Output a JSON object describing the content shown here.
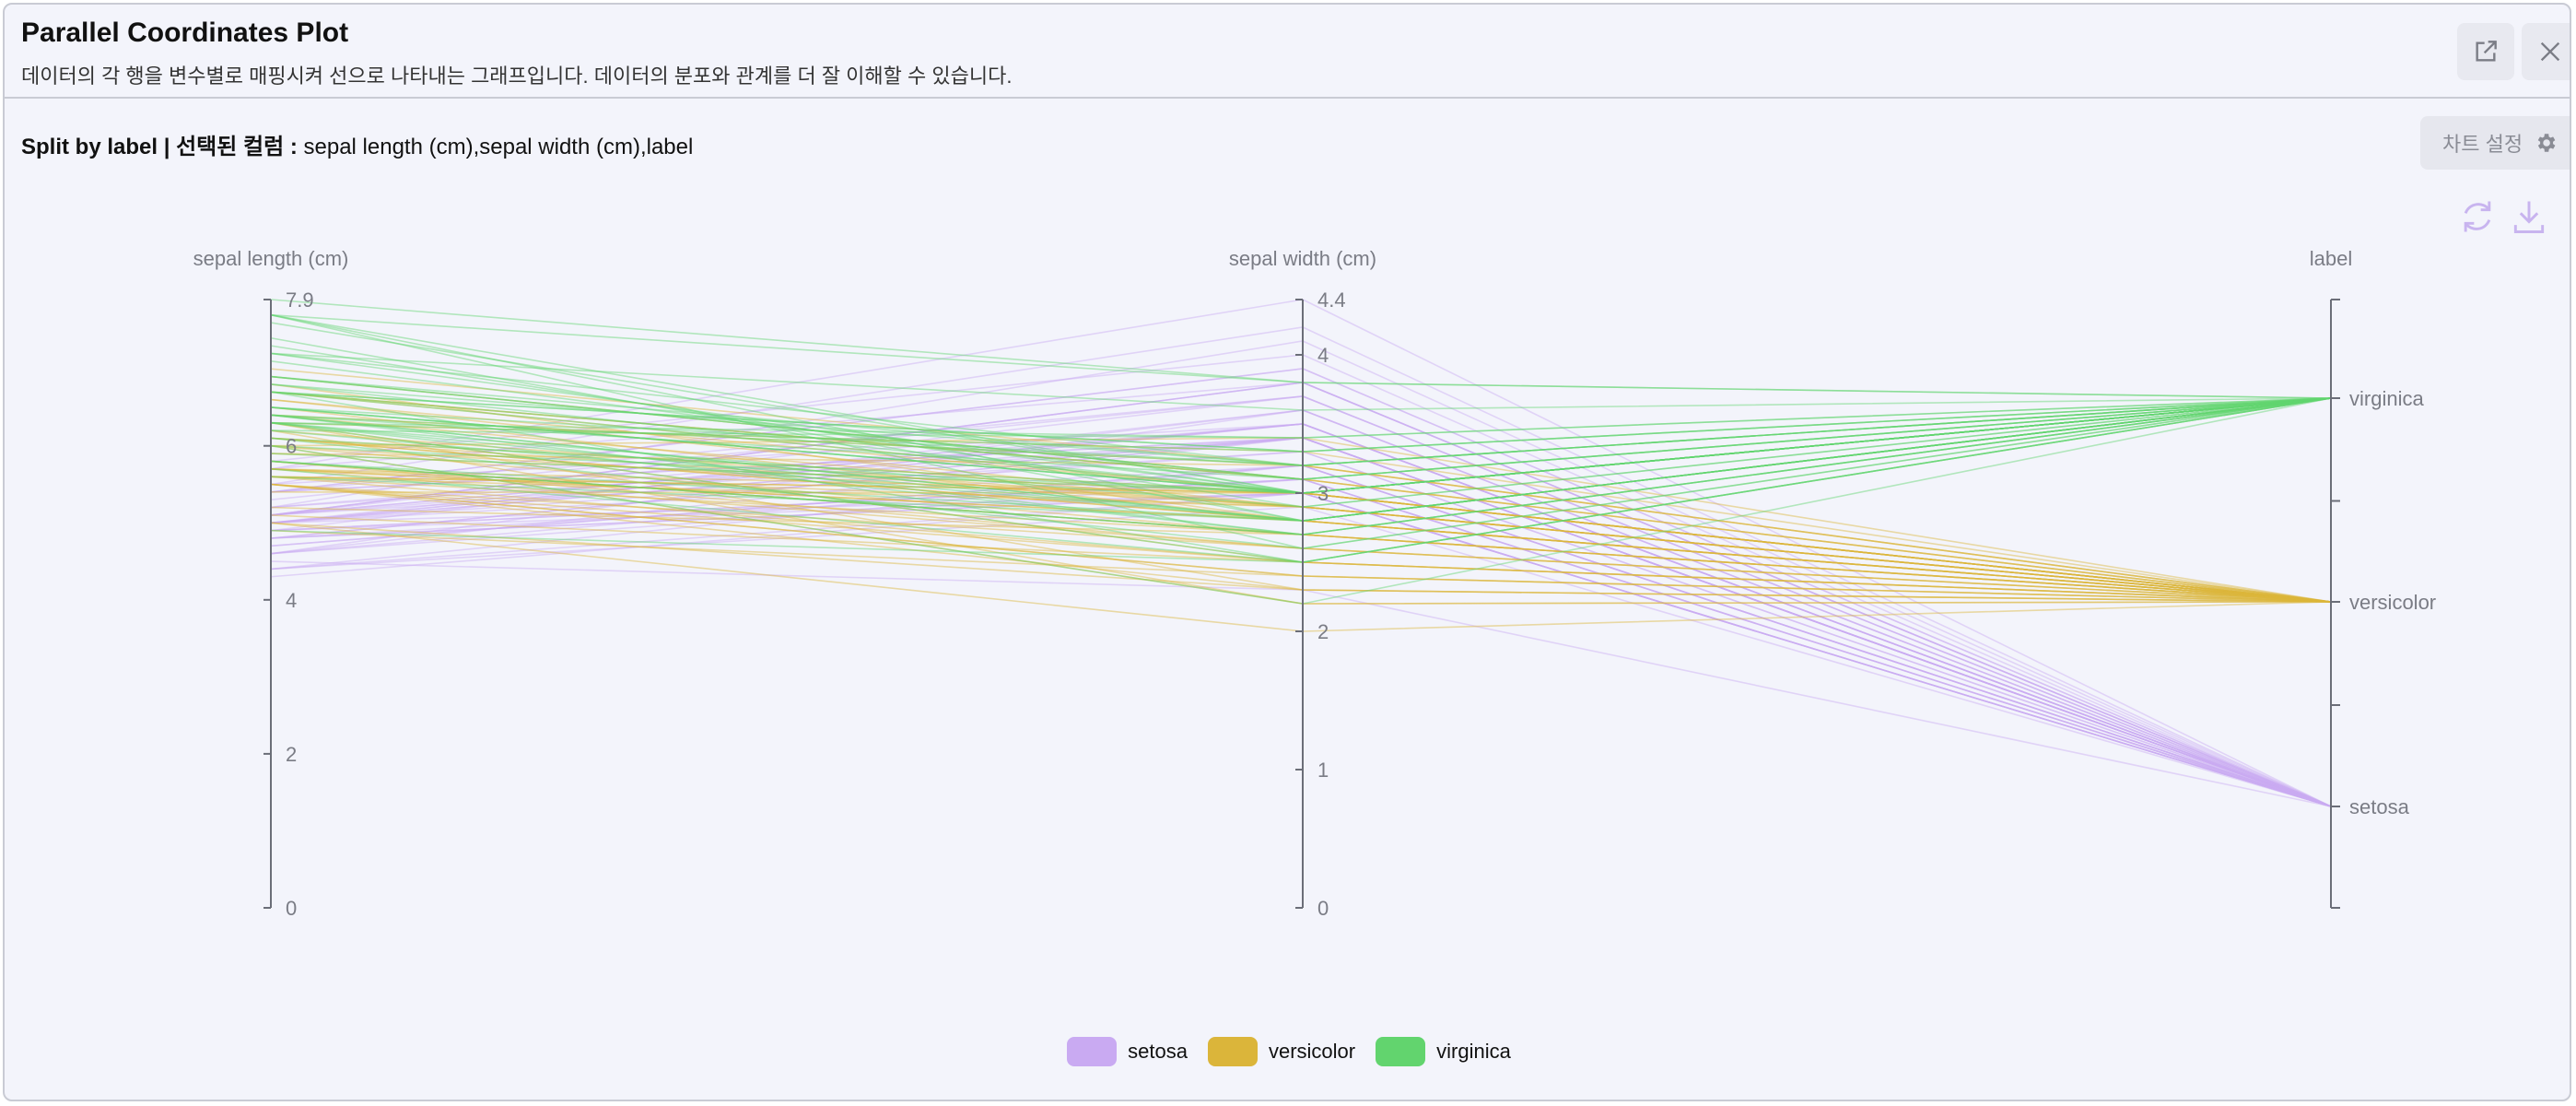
{
  "header": {
    "title": "Parallel Coordinates Plot",
    "subtitle": "데이터의 각 행을 변수별로 매핑시켜 선으로 나타내는 그래프입니다. 데이터의 분포와 관계를 더 잘 이해할 수 있습니다.",
    "open_icon": "external-link-icon",
    "close_icon": "close-icon"
  },
  "toolbar": {
    "split_label": "Split by label",
    "separator": " | ",
    "columns_label": "선택된 컬럼 : ",
    "columns_value": "sepal length (cm),sepal width (cm),label",
    "settings_label": "차트 설정",
    "settings_icon": "gear-icon",
    "refresh_icon": "refresh-icon",
    "download_icon": "download-icon"
  },
  "colors": {
    "setosa": "#c9aaf2",
    "versicolor": "#dbb53a",
    "virginica": "#62d46e",
    "axis": "#6b6e78",
    "label": "#7a7c85"
  },
  "chart_data": {
    "type": "parallel-coordinates",
    "axes": [
      {
        "name": "sepal length (cm)",
        "min": 0,
        "max": 7.9,
        "ticks": [
          0,
          2,
          4,
          6
        ],
        "max_label": "7.9"
      },
      {
        "name": "sepal width (cm)",
        "min": 0,
        "max": 4.4,
        "ticks": [
          0,
          1,
          2,
          3,
          4
        ],
        "max_label": "4.4"
      },
      {
        "name": "label",
        "categories": [
          "setosa",
          "versicolor",
          "virginica"
        ]
      }
    ],
    "legend": [
      "setosa",
      "versicolor",
      "virginica"
    ],
    "legend_position": "bottom-center",
    "series": [
      {
        "name": "setosa",
        "rows": [
          [
            5.1,
            3.5
          ],
          [
            4.9,
            3.0
          ],
          [
            4.7,
            3.2
          ],
          [
            4.6,
            3.1
          ],
          [
            5.0,
            3.6
          ],
          [
            5.4,
            3.9
          ],
          [
            4.6,
            3.4
          ],
          [
            5.0,
            3.4
          ],
          [
            4.4,
            2.9
          ],
          [
            4.9,
            3.1
          ],
          [
            5.4,
            3.7
          ],
          [
            4.8,
            3.4
          ],
          [
            4.8,
            3.0
          ],
          [
            4.3,
            3.0
          ],
          [
            5.8,
            4.0
          ],
          [
            5.7,
            4.4
          ],
          [
            5.4,
            3.9
          ],
          [
            5.1,
            3.5
          ],
          [
            5.7,
            3.8
          ],
          [
            5.1,
            3.8
          ],
          [
            5.4,
            3.4
          ],
          [
            5.1,
            3.7
          ],
          [
            4.6,
            3.6
          ],
          [
            5.1,
            3.3
          ],
          [
            4.8,
            3.4
          ],
          [
            5.0,
            3.0
          ],
          [
            5.0,
            3.4
          ],
          [
            5.2,
            3.5
          ],
          [
            5.2,
            3.4
          ],
          [
            4.7,
            3.2
          ],
          [
            4.8,
            3.1
          ],
          [
            5.4,
            3.4
          ],
          [
            5.2,
            4.1
          ],
          [
            5.5,
            4.2
          ],
          [
            4.9,
            3.1
          ],
          [
            5.0,
            3.2
          ],
          [
            5.5,
            3.5
          ],
          [
            4.9,
            3.6
          ],
          [
            4.4,
            3.0
          ],
          [
            5.1,
            3.4
          ],
          [
            5.0,
            3.5
          ],
          [
            4.5,
            2.3
          ],
          [
            4.4,
            3.2
          ],
          [
            5.0,
            3.5
          ],
          [
            5.1,
            3.8
          ],
          [
            4.8,
            3.0
          ],
          [
            5.1,
            3.8
          ],
          [
            4.6,
            3.2
          ],
          [
            5.3,
            3.7
          ],
          [
            5.0,
            3.3
          ]
        ]
      },
      {
        "name": "versicolor",
        "rows": [
          [
            7.0,
            3.2
          ],
          [
            6.4,
            3.2
          ],
          [
            6.9,
            3.1
          ],
          [
            5.5,
            2.3
          ],
          [
            6.5,
            2.8
          ],
          [
            5.7,
            2.8
          ],
          [
            6.3,
            3.3
          ],
          [
            4.9,
            2.4
          ],
          [
            6.6,
            2.9
          ],
          [
            5.2,
            2.7
          ],
          [
            5.0,
            2.0
          ],
          [
            5.9,
            3.0
          ],
          [
            6.0,
            2.2
          ],
          [
            6.1,
            2.9
          ],
          [
            5.6,
            2.9
          ],
          [
            6.7,
            3.1
          ],
          [
            5.6,
            3.0
          ],
          [
            5.8,
            2.7
          ],
          [
            6.2,
            2.2
          ],
          [
            5.6,
            2.5
          ],
          [
            5.9,
            3.2
          ],
          [
            6.1,
            2.8
          ],
          [
            6.3,
            2.5
          ],
          [
            6.1,
            2.8
          ],
          [
            6.4,
            2.9
          ],
          [
            6.6,
            3.0
          ],
          [
            6.8,
            2.8
          ],
          [
            6.7,
            3.0
          ],
          [
            6.0,
            2.9
          ],
          [
            5.7,
            2.6
          ],
          [
            5.5,
            2.4
          ],
          [
            5.5,
            2.4
          ],
          [
            5.8,
            2.7
          ],
          [
            6.0,
            2.7
          ],
          [
            5.4,
            3.0
          ],
          [
            6.0,
            3.4
          ],
          [
            6.7,
            3.1
          ],
          [
            6.3,
            2.3
          ],
          [
            5.6,
            3.0
          ],
          [
            5.5,
            2.5
          ],
          [
            5.5,
            2.6
          ],
          [
            6.1,
            3.0
          ],
          [
            5.8,
            2.6
          ],
          [
            5.0,
            2.3
          ],
          [
            5.6,
            2.7
          ],
          [
            5.7,
            3.0
          ],
          [
            5.7,
            2.9
          ],
          [
            6.2,
            2.9
          ],
          [
            5.1,
            2.5
          ],
          [
            5.7,
            2.8
          ]
        ]
      },
      {
        "name": "virginica",
        "rows": [
          [
            6.3,
            3.3
          ],
          [
            5.8,
            2.7
          ],
          [
            7.1,
            3.0
          ],
          [
            6.3,
            2.9
          ],
          [
            6.5,
            3.0
          ],
          [
            7.6,
            3.0
          ],
          [
            4.9,
            2.5
          ],
          [
            7.3,
            2.9
          ],
          [
            6.7,
            2.5
          ],
          [
            7.2,
            3.6
          ],
          [
            6.5,
            3.2
          ],
          [
            6.4,
            2.7
          ],
          [
            6.8,
            3.0
          ],
          [
            5.7,
            2.5
          ],
          [
            5.8,
            2.8
          ],
          [
            6.4,
            3.2
          ],
          [
            6.5,
            3.0
          ],
          [
            7.7,
            3.8
          ],
          [
            7.7,
            2.6
          ],
          [
            6.0,
            2.2
          ],
          [
            6.9,
            3.2
          ],
          [
            5.6,
            2.8
          ],
          [
            7.7,
            2.8
          ],
          [
            6.3,
            2.7
          ],
          [
            6.7,
            3.3
          ],
          [
            7.2,
            3.2
          ],
          [
            6.2,
            2.8
          ],
          [
            6.1,
            3.0
          ],
          [
            6.4,
            2.8
          ],
          [
            7.2,
            3.0
          ],
          [
            7.4,
            2.8
          ],
          [
            7.9,
            3.8
          ],
          [
            6.4,
            2.8
          ],
          [
            6.3,
            2.8
          ],
          [
            6.1,
            2.6
          ],
          [
            7.7,
            3.0
          ],
          [
            6.3,
            3.4
          ],
          [
            6.4,
            3.1
          ],
          [
            6.0,
            3.0
          ],
          [
            6.9,
            3.1
          ],
          [
            6.7,
            3.1
          ],
          [
            6.9,
            3.1
          ],
          [
            5.8,
            2.7
          ],
          [
            6.8,
            3.2
          ],
          [
            6.7,
            3.3
          ],
          [
            6.7,
            3.0
          ],
          [
            6.3,
            2.5
          ],
          [
            6.5,
            3.0
          ],
          [
            6.2,
            3.4
          ],
          [
            5.9,
            3.0
          ]
        ]
      }
    ]
  }
}
